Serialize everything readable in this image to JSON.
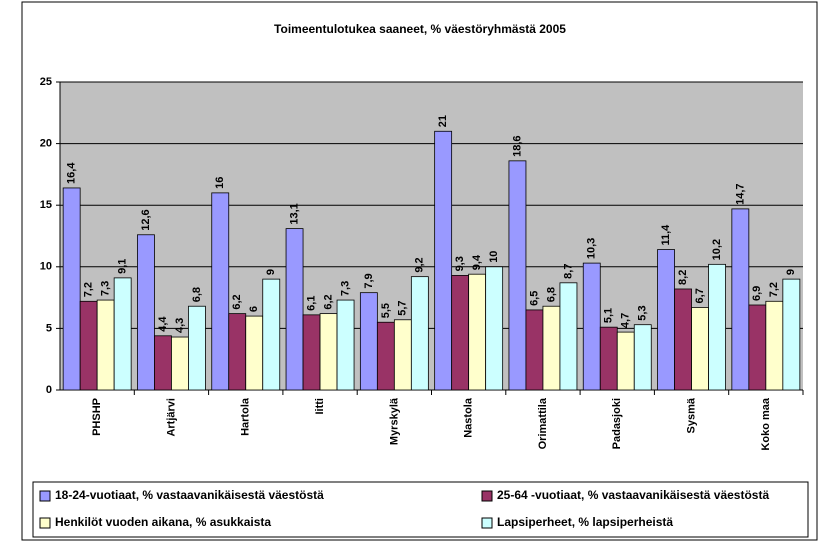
{
  "chart_data": {
    "type": "bar",
    "title": "Toimeentulotukea saaneet, % väestöryhmästä 2005",
    "categories": [
      "PHSHP",
      "Artjärvi",
      "Hartola",
      "Iitti",
      "Myrskylä",
      "Nastola",
      "Orimattila",
      "Padasjoki",
      "Sysmä",
      "Koko maa"
    ],
    "series": [
      {
        "name": "18-24-vuotiaat, % vastaavanikäisestä väestöstä",
        "color": "#9999ff",
        "values": [
          16.4,
          12.6,
          16,
          13.1,
          7.9,
          21,
          18.6,
          10.3,
          11.4,
          14.7
        ],
        "value_labels": [
          "16,4",
          "12,6",
          "16",
          "13,1",
          "7,9",
          "21",
          "18,6",
          "10,3",
          "11,4",
          "14,7"
        ]
      },
      {
        "name": "25-64 -vuotiaat, % vastaavanikäisestä väestöstä",
        "color": "#993366",
        "values": [
          7.2,
          4.4,
          6.2,
          6.1,
          5.5,
          9.3,
          6.5,
          5.1,
          8.2,
          6.9
        ],
        "value_labels": [
          "7,2",
          "4,4",
          "6,2",
          "6,1",
          "5,5",
          "9,3",
          "6,5",
          "5,1",
          "8,2",
          "6,9"
        ]
      },
      {
        "name": "Henkilöt vuoden aikana, % asukkaista",
        "color": "#ffffcc",
        "values": [
          7.3,
          4.3,
          6,
          6.2,
          5.7,
          9.4,
          6.8,
          4.7,
          6.7,
          7.2
        ],
        "value_labels": [
          "7,3",
          "4,3",
          "6",
          "6,2",
          "5,7",
          "9,4",
          "6,8",
          "4,7",
          "6,7",
          "7,2"
        ]
      },
      {
        "name": "Lapsiperheet, % lapsiperheistä",
        "color": "#ccffff",
        "values": [
          9.1,
          6.8,
          9,
          7.3,
          9.2,
          10,
          8.7,
          5.3,
          10.2,
          9
        ],
        "value_labels": [
          "9,1",
          "6,8",
          "9",
          "7,3",
          "9,2",
          "10",
          "8,7",
          "5,3",
          "10,2",
          "9"
        ]
      }
    ],
    "ylim": [
      0,
      25
    ],
    "yticks": [
      0,
      5,
      10,
      15,
      20,
      25
    ],
    "grid": true,
    "legend": "bottom"
  }
}
